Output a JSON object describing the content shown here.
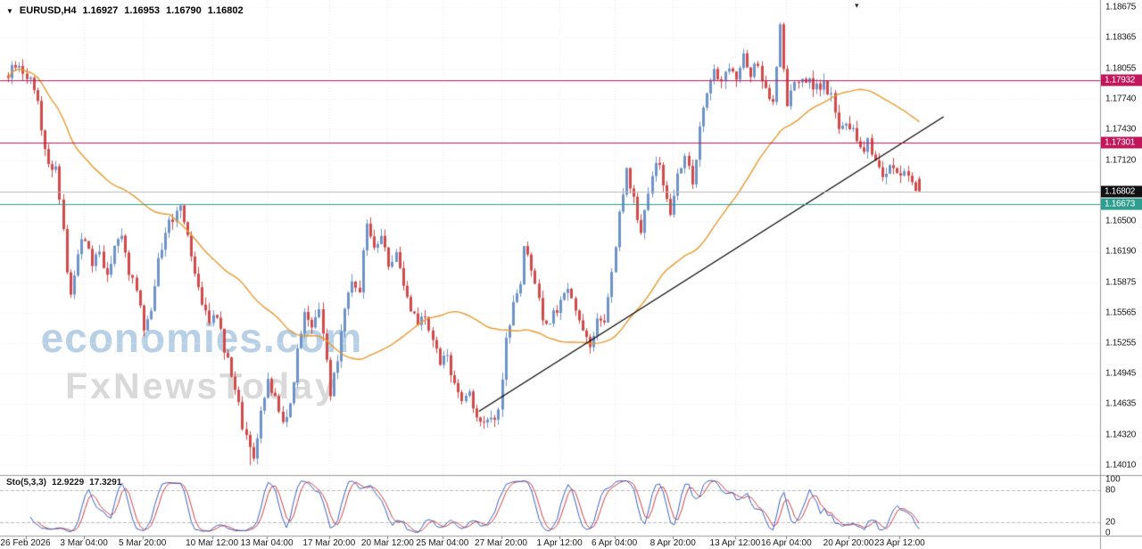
{
  "header": {
    "symbol_period": "EURUSD,H4",
    "open": "1.16927",
    "high": "1.16953",
    "low": "1.16790",
    "close": "1.16802"
  },
  "icons": {
    "symbol_dropdown": "▼",
    "chart_shift": "▾"
  },
  "watermark": {
    "line1": "economies.com",
    "line1_color": "#b7d0e6",
    "line2": "FxNewsToday",
    "line2_color": "#d9d9d9"
  },
  "price_scale": {
    "labels": [
      "1.18675",
      "1.18365",
      "1.18055",
      "1.17740",
      "1.17430",
      "1.17120",
      "1.16500",
      "1.16190",
      "1.15875",
      "1.15565",
      "1.15255",
      "1.14945",
      "1.14635",
      "1.14320",
      "1.14010"
    ]
  },
  "badges": [
    {
      "text": "1.17932",
      "price": 1.17932,
      "color": "#c2185b"
    },
    {
      "text": "1.17301",
      "price": 1.17301,
      "color": "#c2185b"
    },
    {
      "text": "1.16802",
      "price": 1.16802,
      "color": "#111111"
    },
    {
      "text": "1.16673",
      "price": 1.16673,
      "color": "#2f9e8f"
    }
  ],
  "time_scale": {
    "labels": [
      {
        "text": "26 Feb 2026",
        "i": 5
      },
      {
        "text": "3 Mar 04:00",
        "i": 21
      },
      {
        "text": "5 Mar 20:00",
        "i": 37
      },
      {
        "text": "10 Mar 12:00",
        "i": 56
      },
      {
        "text": "13 Mar 04:00",
        "i": 71
      },
      {
        "text": "17 Mar 20:00",
        "i": 88
      },
      {
        "text": "20 Mar 12:00",
        "i": 104
      },
      {
        "text": "25 Mar 04:00",
        "i": 119
      },
      {
        "text": "27 Mar 20:00",
        "i": 135
      },
      {
        "text": "1 Apr 12:00",
        "i": 151
      },
      {
        "text": "6 Apr 04:00",
        "i": 166
      },
      {
        "text": "8 Apr 20:00",
        "i": 182
      },
      {
        "text": "13 Apr 12:00",
        "i": 199
      },
      {
        "text": "16 Apr 04:00",
        "i": 213
      },
      {
        "text": "20 Apr 20:00",
        "i": 230
      },
      {
        "text": "23 Apr 12:00",
        "i": 244
      }
    ]
  },
  "indicator": {
    "name": "Sto(5,3,3)",
    "value1": "12.9229",
    "value2": "17.3291",
    "scale_labels": [
      "100",
      "80",
      "20",
      "0"
    ]
  },
  "chart_data": {
    "type": "candlestick",
    "symbol": "EURUSD",
    "timeframe": "H4",
    "current_bar": {
      "open": 1.16927,
      "high": 1.16953,
      "low": 1.1679,
      "close": 1.16802
    },
    "y_range": {
      "min": 1.1392,
      "max": 1.1875
    },
    "y_ticks": [
      1.18675,
      1.18365,
      1.18055,
      1.1774,
      1.1743,
      1.1712,
      1.165,
      1.1619,
      1.15875,
      1.15565,
      1.15255,
      1.14945,
      1.14635,
      1.1432,
      1.1401
    ],
    "candle_count": 250,
    "price_anchors": [
      [
        0,
        1.1798
      ],
      [
        2,
        1.1809
      ],
      [
        4,
        1.18
      ],
      [
        6,
        1.1795
      ],
      [
        8,
        1.1772
      ],
      [
        9,
        1.1745
      ],
      [
        10,
        1.1722
      ],
      [
        12,
        1.17
      ],
      [
        13,
        1.1708
      ],
      [
        14,
        1.1672
      ],
      [
        15,
        1.1645
      ],
      [
        16,
        1.1598
      ],
      [
        17,
        1.1576
      ],
      [
        19,
        1.1618
      ],
      [
        21,
        1.1634
      ],
      [
        23,
        1.1606
      ],
      [
        25,
        1.162
      ],
      [
        27,
        1.1592
      ],
      [
        29,
        1.1622
      ],
      [
        31,
        1.1634
      ],
      [
        33,
        1.16
      ],
      [
        35,
        1.1576
      ],
      [
        37,
        1.1541
      ],
      [
        39,
        1.1562
      ],
      [
        41,
        1.161
      ],
      [
        43,
        1.164
      ],
      [
        45,
        1.1654
      ],
      [
        47,
        1.1668
      ],
      [
        49,
        1.1638
      ],
      [
        51,
        1.16
      ],
      [
        53,
        1.157
      ],
      [
        55,
        1.1546
      ],
      [
        57,
        1.1556
      ],
      [
        59,
        1.152
      ],
      [
        61,
        1.1492
      ],
      [
        63,
        1.1469
      ],
      [
        64,
        1.1442
      ],
      [
        66,
        1.1415
      ],
      [
        67,
        1.1408
      ],
      [
        69,
        1.1452
      ],
      [
        71,
        1.149
      ],
      [
        73,
        1.147
      ],
      [
        75,
        1.1446
      ],
      [
        77,
        1.1462
      ],
      [
        79,
        1.152
      ],
      [
        81,
        1.1556
      ],
      [
        83,
        1.1546
      ],
      [
        85,
        1.156
      ],
      [
        87,
        1.1506
      ],
      [
        88,
        1.1468
      ],
      [
        90,
        1.1512
      ],
      [
        92,
        1.156
      ],
      [
        94,
        1.159
      ],
      [
        96,
        1.1582
      ],
      [
        98,
        1.1648
      ],
      [
        100,
        1.1622
      ],
      [
        102,
        1.1636
      ],
      [
        104,
        1.1606
      ],
      [
        106,
        1.162
      ],
      [
        108,
        1.1582
      ],
      [
        110,
        1.1556
      ],
      [
        112,
        1.1546
      ],
      [
        114,
        1.1556
      ],
      [
        116,
        1.1526
      ],
      [
        118,
        1.1506
      ],
      [
        120,
        1.1512
      ],
      [
        122,
        1.1482
      ],
      [
        124,
        1.1466
      ],
      [
        126,
        1.1476
      ],
      [
        128,
        1.1452
      ],
      [
        130,
        1.144
      ],
      [
        132,
        1.1446
      ],
      [
        134,
        1.1456
      ],
      [
        136,
        1.153
      ],
      [
        138,
        1.1562
      ],
      [
        140,
        1.1582
      ],
      [
        141,
        1.1622
      ],
      [
        143,
        1.16
      ],
      [
        145,
        1.1566
      ],
      [
        147,
        1.1541
      ],
      [
        149,
        1.1556
      ],
      [
        151,
        1.1566
      ],
      [
        153,
        1.158
      ],
      [
        155,
        1.156
      ],
      [
        157,
        1.154
      ],
      [
        159,
        1.1524
      ],
      [
        161,
        1.155
      ],
      [
        163,
        1.1546
      ],
      [
        165,
        1.16
      ],
      [
        167,
        1.1655
      ],
      [
        169,
        1.17
      ],
      [
        171,
        1.167
      ],
      [
        173,
        1.164
      ],
      [
        175,
        1.1676
      ],
      [
        177,
        1.1714
      ],
      [
        179,
        1.169
      ],
      [
        181,
        1.1656
      ],
      [
        183,
        1.1696
      ],
      [
        185,
        1.1714
      ],
      [
        187,
        1.169
      ],
      [
        189,
        1.1744
      ],
      [
        191,
        1.178
      ],
      [
        193,
        1.1806
      ],
      [
        195,
        1.179
      ],
      [
        197,
        1.181
      ],
      [
        199,
        1.1796
      ],
      [
        201,
        1.182
      ],
      [
        203,
        1.18
      ],
      [
        205,
        1.181
      ],
      [
        207,
        1.178
      ],
      [
        209,
        1.1766
      ],
      [
        211,
        1.1846
      ],
      [
        212,
        1.18
      ],
      [
        213,
        1.177
      ],
      [
        215,
        1.1786
      ],
      [
        217,
        1.18
      ],
      [
        219,
        1.179
      ],
      [
        221,
        1.1786
      ],
      [
        223,
        1.179
      ],
      [
        225,
        1.1776
      ],
      [
        227,
        1.1746
      ],
      [
        229,
        1.1752
      ],
      [
        231,
        1.174
      ],
      [
        233,
        1.172
      ],
      [
        235,
        1.173
      ],
      [
        237,
        1.171
      ],
      [
        239,
        1.17
      ],
      [
        241,
        1.1706
      ],
      [
        243,
        1.1694
      ],
      [
        245,
        1.17
      ],
      [
        247,
        1.1688
      ],
      [
        249,
        1.16802
      ]
    ],
    "levels": [
      {
        "price": 1.17932,
        "color": "#c2185b"
      },
      {
        "price": 1.17301,
        "color": "#c2185b"
      },
      {
        "price": 1.16673,
        "color": "#2f9e8f"
      }
    ],
    "current_price": {
      "price": 1.16802,
      "line_color": "#b8b8b8",
      "badge_color": "#111111"
    },
    "trendline": {
      "from": [
        129,
        1.1456
      ],
      "to": [
        256,
        1.1756
      ],
      "color": "#000000"
    },
    "moving_average": {
      "period": 45,
      "color": "#e89a2e"
    },
    "stochastic": {
      "k": 5,
      "slowing": 3,
      "d": 3,
      "main_color": "#3a5fc0",
      "signal_color": "#cc4040",
      "levels": [
        80,
        20
      ],
      "last_main": 12.9229,
      "last_signal": 17.3291
    },
    "colors": {
      "up": "#6e93c8",
      "down": "#d24949",
      "grid": "#e7e7e7",
      "grid_h": "#efefef",
      "separator": "#9a9a9a",
      "background": "#ffffff"
    }
  }
}
